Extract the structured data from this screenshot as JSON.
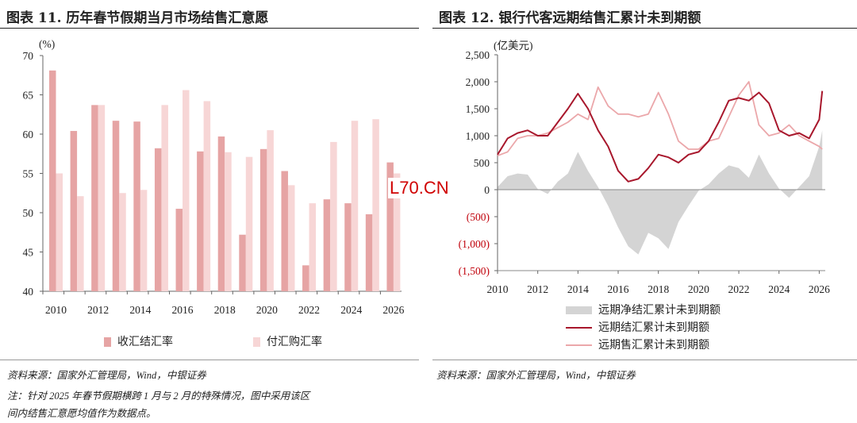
{
  "left": {
    "title": "图表 11. 历年春节假期当月市场结售汇意愿",
    "unit": "(%)",
    "source": "资料来源：国家外汇管理局，Wind，中银证券",
    "note_line1": "注：针对 2025 年春节假期横跨 1 月与 2 月的特殊情况，图中采用该区",
    "note_line2": "间内结售汇意愿均值作为数据点。",
    "legend": [
      "收汇结汇率",
      "付汇购汇率"
    ],
    "colors": {
      "settle": "#e6a4a4",
      "purchase": "#f7d6d6"
    }
  },
  "right": {
    "title": "图表 12. 银行代客远期结售汇累计未到期额",
    "unit": "(亿美元)",
    "source": "资料来源：国家外汇管理局，Wind，中银证券",
    "legend": [
      "远期净结汇累计未到期额",
      "远期结汇累计未到期额",
      "远期售汇累计未到期额"
    ],
    "colors": {
      "net": "#d4d4d4",
      "settle": "#a8172c",
      "sale": "#eba7aa"
    }
  },
  "watermark": "L70.CN",
  "chart_data": [
    {
      "type": "bar",
      "title": "历年春节假期当月市场结售汇意愿",
      "ylabel": "(%)",
      "ylim": [
        40,
        70
      ],
      "yticks": [
        40,
        45,
        50,
        55,
        60,
        65,
        70
      ],
      "xticks": [
        "2010",
        "2012",
        "2014",
        "2016",
        "2018",
        "2020",
        "2022",
        "2024",
        "2026"
      ],
      "categories": [
        "2010",
        "2011",
        "2012",
        "2013",
        "2014",
        "2015",
        "2016",
        "2017",
        "2018",
        "2019",
        "2020",
        "2021",
        "2022",
        "2023",
        "2024",
        "2025",
        "2026"
      ],
      "series": [
        {
          "name": "收汇结汇率",
          "values": [
            68.1,
            60.4,
            63.7,
            61.7,
            61.6,
            58.2,
            50.5,
            57.8,
            59.7,
            47.2,
            58.1,
            55.3,
            43.3,
            51.7,
            51.2,
            49.8,
            56.4
          ]
        },
        {
          "name": "付汇购汇率",
          "values": [
            55.0,
            52.1,
            63.7,
            52.5,
            52.9,
            63.7,
            65.6,
            64.2,
            57.7,
            57.1,
            60.5,
            53.5,
            51.2,
            59.0,
            61.7,
            61.9,
            55.0
          ]
        }
      ],
      "grid": false,
      "legend_position": "bottom"
    },
    {
      "type": "line",
      "title": "银行代客远期结售汇累计未到期额",
      "ylabel": "(亿美元)",
      "ylim": [
        -1500,
        2500
      ],
      "yticks": [
        "2,500",
        "2,000",
        "1,500",
        "1,000",
        "500",
        "0",
        "(500)",
        "(1,000)",
        "(1,500)"
      ],
      "xlim": [
        2010,
        2026.3
      ],
      "xticks": [
        "2010",
        "2012",
        "2014",
        "2016",
        "2018",
        "2020",
        "2022",
        "2024",
        "2026"
      ],
      "x": [
        2010.0,
        2010.5,
        2011.0,
        2011.5,
        2012.0,
        2012.5,
        2013.0,
        2013.5,
        2014.0,
        2014.5,
        2015.0,
        2015.5,
        2016.0,
        2016.5,
        2017.0,
        2017.5,
        2018.0,
        2018.5,
        2019.0,
        2019.5,
        2020.0,
        2020.5,
        2021.0,
        2021.5,
        2022.0,
        2022.5,
        2023.0,
        2023.5,
        2024.0,
        2024.5,
        2025.0,
        2025.5,
        2026.0,
        2026.15
      ],
      "series": [
        {
          "name": "远期净结汇累计未到期额",
          "type": "area",
          "values": [
            50,
            250,
            300,
            280,
            10,
            -80,
            150,
            300,
            700,
            350,
            50,
            -300,
            -700,
            -1050,
            -1200,
            -800,
            -900,
            -1100,
            -600,
            -300,
            -20,
            100,
            300,
            450,
            400,
            220,
            650,
            300,
            20,
            -150,
            50,
            250,
            800,
            1100
          ]
        },
        {
          "name": "远期结汇累计未到期额",
          "values": [
            650,
            950,
            1050,
            1100,
            1000,
            1000,
            1250,
            1500,
            1780,
            1500,
            1100,
            800,
            350,
            150,
            200,
            400,
            650,
            600,
            500,
            650,
            700,
            900,
            1250,
            1650,
            1700,
            1650,
            1800,
            1600,
            1100,
            1000,
            1050,
            950,
            1300,
            1830
          ]
        },
        {
          "name": "远期售汇累计未到期额",
          "values": [
            630,
            700,
            950,
            1000,
            1000,
            1050,
            1150,
            1250,
            1400,
            1300,
            1900,
            1550,
            1400,
            1400,
            1350,
            1400,
            1800,
            1400,
            900,
            750,
            750,
            900,
            950,
            1350,
            1750,
            2000,
            1200,
            1000,
            1050,
            1200,
            1000,
            900,
            800,
            750
          ]
        }
      ],
      "grid": false,
      "legend_position": "bottom"
    }
  ]
}
